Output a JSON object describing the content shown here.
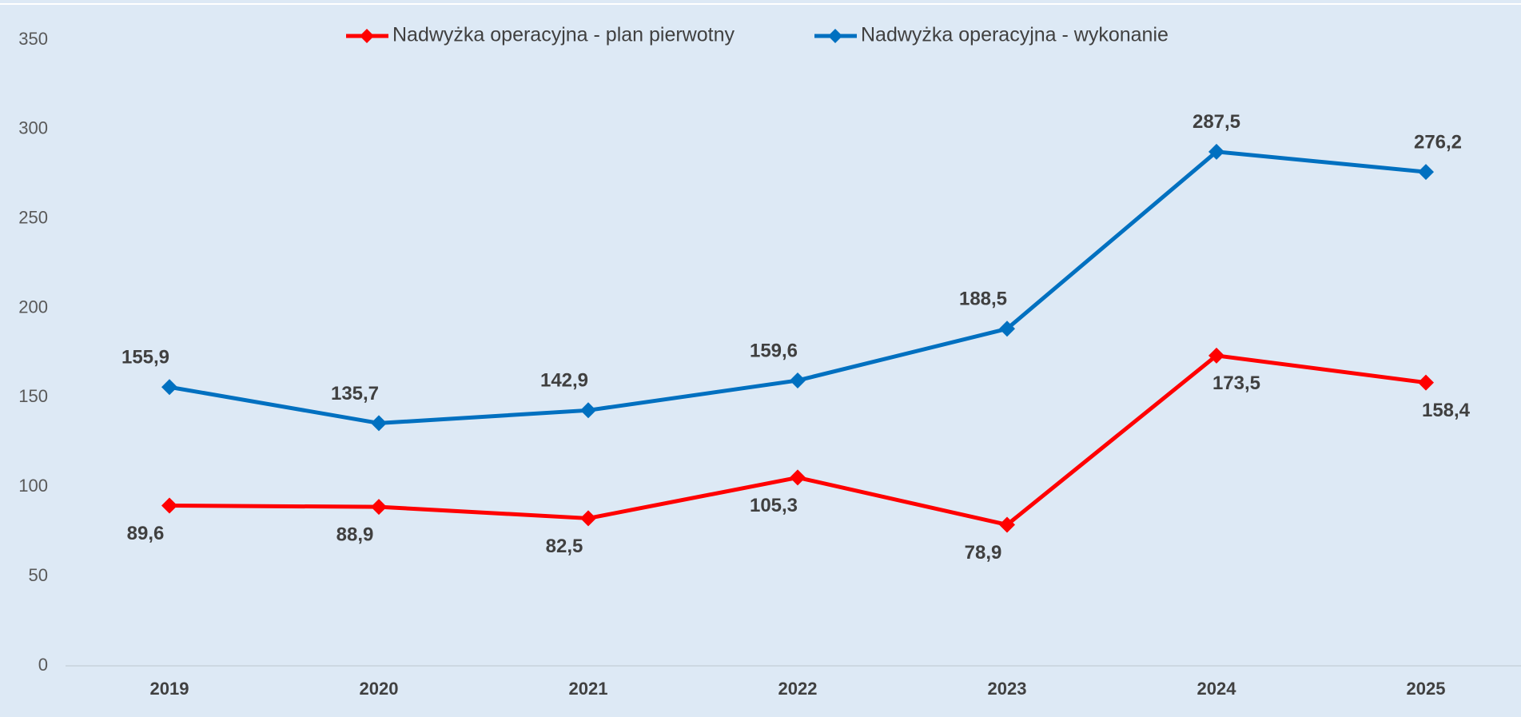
{
  "chart_data": {
    "type": "line",
    "categories": [
      "2019",
      "2020",
      "2021",
      "2022",
      "2023",
      "2024",
      "2025"
    ],
    "series": [
      {
        "name": "Nadwyżka operacyjna - plan pierwotny",
        "color": "#ff0000",
        "values": [
          89.6,
          88.9,
          82.5,
          105.3,
          78.9,
          173.5,
          158.4
        ],
        "value_labels": [
          "89,6",
          "88,9",
          "82,5",
          "105,3",
          "78,9",
          "173,5",
          "158,4"
        ]
      },
      {
        "name": "Nadwyżka operacyjna - wykonanie",
        "color": "#0070c0",
        "values": [
          155.9,
          135.7,
          142.9,
          159.6,
          188.5,
          287.5,
          276.2
        ],
        "value_labels": [
          "155,9",
          "135,7",
          "142,9",
          "159,6",
          "188,5",
          "287,5",
          "276,2"
        ]
      }
    ],
    "ylim": [
      0,
      350
    ],
    "yticks": [
      0,
      50,
      100,
      150,
      200,
      250,
      300,
      350
    ],
    "grid": false,
    "legend": "top"
  }
}
